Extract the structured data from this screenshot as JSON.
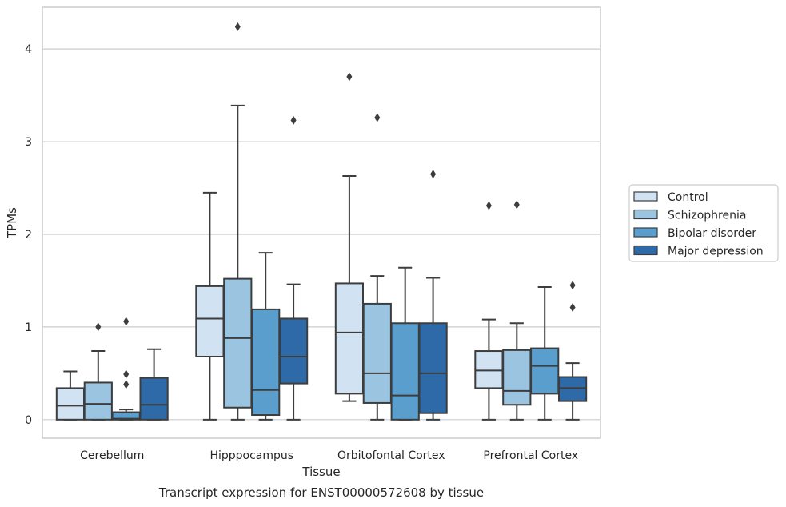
{
  "chart_data": {
    "type": "box",
    "caption": "Transcript expression for ENST00000572608 by tissue",
    "xlabel": "Tissue",
    "ylabel": "TPMs",
    "ylim": [
      -0.2,
      4.45
    ],
    "yticks": [
      0,
      1,
      2,
      3,
      4
    ],
    "grid": "horizontal",
    "legend_position": "right",
    "categories": [
      "Cerebellum",
      "Hipppocampus",
      "Orbitofontal Cortex",
      "Prefrontal Cortex"
    ],
    "series": [
      {
        "name": "Control",
        "color": "#d1e2f2",
        "boxes": [
          {
            "min": 0,
            "q1": 0,
            "median": 0.15,
            "q3": 0.34,
            "max": 0.52,
            "outliers": []
          },
          {
            "min": 0,
            "q1": 0.68,
            "median": 1.09,
            "q3": 1.44,
            "max": 2.45,
            "outliers": []
          },
          {
            "min": 0.2,
            "q1": 0.28,
            "median": 0.94,
            "q3": 1.47,
            "max": 2.63,
            "outliers": [
              3.7
            ]
          },
          {
            "min": 0,
            "q1": 0.34,
            "median": 0.53,
            "q3": 0.74,
            "max": 1.08,
            "outliers": [
              2.31
            ]
          }
        ]
      },
      {
        "name": "Schizophrenia",
        "color": "#9ac4df",
        "boxes": [
          {
            "min": 0,
            "q1": 0,
            "median": 0.17,
            "q3": 0.4,
            "max": 0.74,
            "outliers": [
              1.0
            ]
          },
          {
            "min": 0,
            "q1": 0.13,
            "median": 0.88,
            "q3": 1.52,
            "max": 3.39,
            "outliers": [
              4.24
            ]
          },
          {
            "min": 0,
            "q1": 0.18,
            "median": 0.5,
            "q3": 1.25,
            "max": 1.55,
            "outliers": [
              3.26
            ]
          },
          {
            "min": 0,
            "q1": 0.16,
            "median": 0.31,
            "q3": 0.75,
            "max": 1.04,
            "outliers": [
              2.32
            ]
          }
        ]
      },
      {
        "name": "Bipolar disorder",
        "color": "#5a9ecd",
        "boxes": [
          {
            "min": 0,
            "q1": 0,
            "median": 0.01,
            "q3": 0.08,
            "max": 0.11,
            "outliers": [
              0.38,
              0.49,
              1.06
            ]
          },
          {
            "min": 0,
            "q1": 0.05,
            "median": 0.32,
            "q3": 1.19,
            "max": 1.8,
            "outliers": []
          },
          {
            "min": 0,
            "q1": 0,
            "median": 0.26,
            "q3": 1.04,
            "max": 1.64,
            "outliers": []
          },
          {
            "min": 0,
            "q1": 0.28,
            "median": 0.58,
            "q3": 0.77,
            "max": 1.43,
            "outliers": []
          }
        ]
      },
      {
        "name": "Major depression",
        "color": "#2d6aa7",
        "boxes": [
          {
            "min": 0,
            "q1": 0,
            "median": 0.16,
            "q3": 0.45,
            "max": 0.76,
            "outliers": []
          },
          {
            "min": 0,
            "q1": 0.39,
            "median": 0.68,
            "q3": 1.09,
            "max": 1.46,
            "outliers": [
              3.23
            ]
          },
          {
            "min": 0,
            "q1": 0.07,
            "median": 0.5,
            "q3": 1.04,
            "max": 1.53,
            "outliers": [
              2.65
            ]
          },
          {
            "min": 0,
            "q1": 0.2,
            "median": 0.34,
            "q3": 0.46,
            "max": 0.61,
            "outliers": [
              1.21,
              1.45
            ]
          }
        ]
      }
    ]
  }
}
